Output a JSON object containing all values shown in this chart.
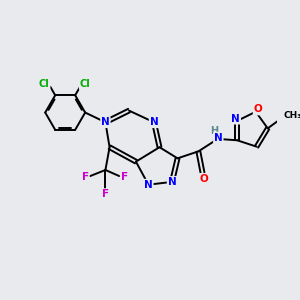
{
  "bg_color": "#e8eaed",
  "atom_colors": {
    "C": "#000000",
    "N": "#0000ff",
    "O": "#ff0000",
    "F": "#cc00cc",
    "Cl": "#00aa00",
    "H": "#5a8a8a"
  },
  "figsize": [
    3.0,
    3.0
  ],
  "dpi": 100
}
